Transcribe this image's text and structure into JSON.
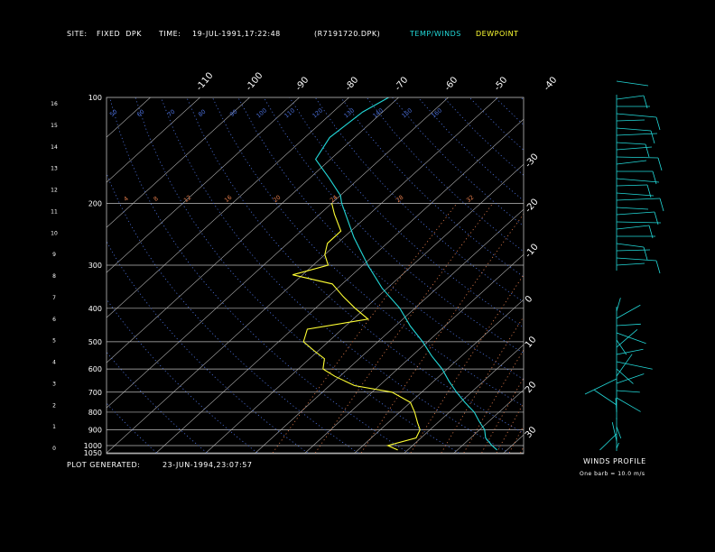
{
  "header": {
    "site_label": "SITE:",
    "site_value": "FIXED  DPK",
    "time_label": "TIME:",
    "time_value": "19-JUL-1991,17:22:48",
    "file_id": "(R7191720.DPK)",
    "legend_temp": "TEMP/WINDS",
    "legend_dew": "DEWPOINT"
  },
  "footer": {
    "plot_generated_label": "PLOT GENERATED:",
    "plot_generated_value": "23-JUN-1994,23:07:57",
    "winds_profile_title": "WINDS PROFILE",
    "barb_note": "One barb = 10.0 m/s"
  },
  "colors": {
    "temperature": "#22d8d8",
    "dewpoint": "#ffff33",
    "grid": "#bdbdbd",
    "mixing_ratio": "#e07a4a",
    "adiabat": "#4a6ed8"
  },
  "chart_data": {
    "type": "line",
    "subtype": "skew-T log-P thermodynamic diagram",
    "pressure_labels": [
      "100",
      "200",
      "300",
      "400",
      "500",
      "600",
      "700",
      "800",
      "900",
      "1000",
      "1050"
    ],
    "pressure_levels": [
      100,
      200,
      300,
      400,
      500,
      600,
      700,
      800,
      900,
      1000,
      1050
    ],
    "height_km_labels": [
      "16",
      "15",
      "14",
      "13",
      "12",
      "11",
      "10",
      "9",
      "8",
      "7",
      "6",
      "5",
      "4",
      "3",
      "2",
      "1",
      "0"
    ],
    "top_temperature_labels": [
      "-110",
      "-100",
      "-90",
      "-80",
      "-70",
      "-60",
      "-50",
      "-40"
    ],
    "right_temperature_labels": [
      "-30",
      "-20",
      "-10",
      "0",
      "10",
      "20",
      "30"
    ],
    "top_temperature_values": [
      -110,
      -100,
      -90,
      -80,
      -70,
      -60,
      -50,
      -40
    ],
    "right_temperature_values": [
      -30,
      -20,
      -10,
      0,
      10,
      20,
      30
    ],
    "mixing_ratio_labels": [
      "4",
      "8",
      "12",
      "16",
      "20",
      "24",
      "28",
      "32"
    ],
    "adiabat_labels": [
      "50",
      "60",
      "70",
      "80",
      "90",
      "100",
      "110",
      "120",
      "130",
      "140",
      "150",
      "160"
    ],
    "series": [
      {
        "name": "TEMP/WINDS",
        "points": [
          {
            "p": 100,
            "t": -72
          },
          {
            "p": 110,
            "t": -74
          },
          {
            "p": 130,
            "t": -75
          },
          {
            "p": 150,
            "t": -73
          },
          {
            "p": 170,
            "t": -66
          },
          {
            "p": 190,
            "t": -60
          },
          {
            "p": 200,
            "t": -58
          },
          {
            "p": 250,
            "t": -48
          },
          {
            "p": 300,
            "t": -39
          },
          {
            "p": 350,
            "t": -31
          },
          {
            "p": 400,
            "t": -23
          },
          {
            "p": 450,
            "t": -17
          },
          {
            "p": 500,
            "t": -11
          },
          {
            "p": 550,
            "t": -6
          },
          {
            "p": 600,
            "t": -1
          },
          {
            "p": 650,
            "t": 3
          },
          {
            "p": 700,
            "t": 7
          },
          {
            "p": 750,
            "t": 11
          },
          {
            "p": 800,
            "t": 15
          },
          {
            "p": 850,
            "t": 18
          },
          {
            "p": 900,
            "t": 21
          },
          {
            "p": 950,
            "t": 23
          },
          {
            "p": 1000,
            "t": 26
          },
          {
            "p": 1030,
            "t": 28
          }
        ]
      },
      {
        "name": "DEWPOINT",
        "points": [
          {
            "p": 200,
            "t": -60
          },
          {
            "p": 215,
            "t": -57
          },
          {
            "p": 240,
            "t": -52
          },
          {
            "p": 260,
            "t": -52
          },
          {
            "p": 280,
            "t": -50
          },
          {
            "p": 300,
            "t": -47
          },
          {
            "p": 320,
            "t": -52
          },
          {
            "p": 340,
            "t": -42
          },
          {
            "p": 370,
            "t": -37
          },
          {
            "p": 400,
            "t": -32
          },
          {
            "p": 430,
            "t": -27
          },
          {
            "p": 460,
            "t": -37
          },
          {
            "p": 500,
            "t": -35
          },
          {
            "p": 530,
            "t": -31
          },
          {
            "p": 560,
            "t": -27
          },
          {
            "p": 600,
            "t": -25
          },
          {
            "p": 630,
            "t": -21
          },
          {
            "p": 670,
            "t": -15
          },
          {
            "p": 700,
            "t": -6
          },
          {
            "p": 750,
            "t": 0
          },
          {
            "p": 800,
            "t": 3
          },
          {
            "p": 860,
            "t": 6
          },
          {
            "p": 900,
            "t": 8
          },
          {
            "p": 950,
            "t": 9
          },
          {
            "p": 1000,
            "t": 5
          },
          {
            "p": 1030,
            "t": 8
          }
        ]
      }
    ]
  }
}
